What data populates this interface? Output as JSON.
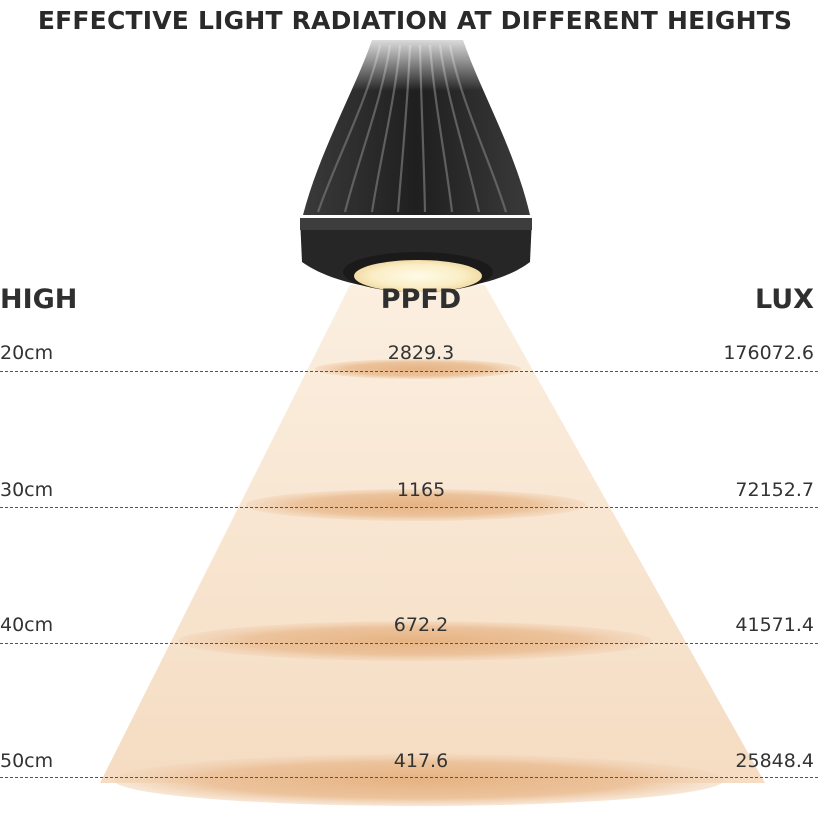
{
  "title": "EFFECTIVE LIGHT RADIATION AT DIFFERENT HEIGHTS",
  "headers": {
    "height": "HIGH",
    "ppfd": "PPFD",
    "lux": "LUX"
  },
  "rows": [
    {
      "height": "20cm",
      "ppfd": "2829.3",
      "lux": "176072.6"
    },
    {
      "height": "30cm",
      "ppfd": "1165",
      "lux": "72152.7"
    },
    {
      "height": "40cm",
      "ppfd": "672.2",
      "lux": "41571.4"
    },
    {
      "height": "50cm",
      "ppfd": "417.6",
      "lux": "25848.4"
    }
  ],
  "icons": {
    "lamp": "grow-light-lamp-icon"
  },
  "colors": {
    "beam": "#f7e3cd",
    "ellipse": "#e9b98a",
    "lamp_body": "#2e2e2e",
    "lamp_glow": "#fff4d6"
  }
}
